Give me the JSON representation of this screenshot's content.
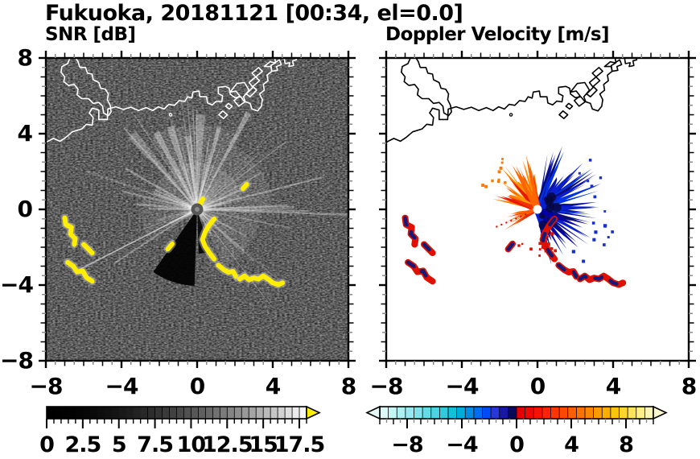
{
  "title": "Fukuoka, 20181121 [00:34, el=0.0]",
  "panels": [
    {
      "key": "snr",
      "subtitle": "SNR [dB]"
    },
    {
      "key": "velocity",
      "subtitle": "Doppler Velocity [m/s]"
    }
  ],
  "axes": {
    "xlim": [
      -8,
      8
    ],
    "ylim": [
      -8,
      8
    ],
    "xtick_values": [
      -8,
      -4,
      0,
      4,
      8
    ],
    "ytick_values": [
      8,
      4,
      0,
      -4,
      -8
    ],
    "xtick_labels": [
      "−8",
      "−4",
      "0",
      "4",
      "8"
    ],
    "ytick_labels": [
      "8",
      "4",
      "0",
      "−4",
      "−8"
    ],
    "minor_tick_step": 0.5,
    "grid": false
  },
  "colors": {
    "snr_background": "#000000",
    "snr_coast": "#ffffff",
    "snr_over_yellow": "#ffee00",
    "snr_halo": "#c8c8c8",
    "vel_background": "#ffffff",
    "vel_coast": "#000000",
    "vel_navy": "#0b12a6",
    "vel_navy_dark": "#07073f",
    "vel_orange": "#ff7d00",
    "vel_red": "#e01000",
    "axis_color": "#000000",
    "minor_tick_gray": "#8a8a8a"
  },
  "chart_data": [
    {
      "type": "heatmap",
      "title": "SNR [dB]",
      "variable": "radar signal-to-noise ratio PPI scan",
      "units": "dB",
      "x_range": [
        -8,
        8
      ],
      "y_range": [
        -8,
        8
      ],
      "radar_center": [
        0,
        0
      ],
      "colorbar": {
        "min": 0,
        "max": 18,
        "segments": 36,
        "gamma": 1.9,
        "colormap": "black-to-white grayscale",
        "tick_values": [
          0,
          2.5,
          5,
          7.5,
          10,
          12.5,
          15,
          17.5
        ],
        "tick_labels": [
          "0",
          "2.5",
          "5",
          "7.5",
          "10",
          "12.5",
          "15",
          "17.5"
        ],
        "over_arrow_color": "#ffee00",
        "minor_tick_step": 0.5
      },
      "description": "Black noise background with bright radial beams fanning from the radar at (0,0), mostly toward N-NE-E; yellow (over-range) clutter arcs SW of center and a yellow arc chain running SE from center."
    },
    {
      "type": "heatmap",
      "title": "Doppler Velocity [m/s]",
      "variable": "radial Doppler velocity PPI scan",
      "units": "m/s",
      "x_range": [
        -8,
        8
      ],
      "y_range": [
        -8,
        8
      ],
      "radar_center": [
        0,
        0
      ],
      "colorbar": {
        "min": -10,
        "max": 10,
        "segments": 32,
        "colormap": "diverging cyan-blue to red-yellow",
        "tick_values": [
          -8,
          -4,
          0,
          4,
          8
        ],
        "tick_labels": [
          "−8",
          "−4",
          "0",
          "4",
          "8"
        ],
        "under_arrow_color": "#e4fbf8",
        "over_arrow_color": "#fff8cf",
        "minor_tick_step": 0.5,
        "segment_colors": [
          "#dcfaf8",
          "#c4f5f5",
          "#adf0f2",
          "#95eaef",
          "#7de4ec",
          "#64dce8",
          "#4ad3e4",
          "#2fc9e0",
          "#14bedd",
          "#00abdd",
          "#008ce4",
          "#006cee",
          "#004cf2",
          "#2836e0",
          "#1818a8",
          "#0a0a58",
          "#e60000",
          "#ee0800",
          "#f61400",
          "#fc2400",
          "#ff3600",
          "#ff4a00",
          "#ff5e00",
          "#ff7200",
          "#ff8600",
          "#ff9a00",
          "#ffae00",
          "#ffc30e",
          "#ffd42e",
          "#ffe356",
          "#ffef86",
          "#fff7b4"
        ]
      },
      "lobes": {
        "positive_orange_red_sector_deg": [
          92,
          172
        ],
        "secondary_orange_sector_deg": [
          186,
          218
        ],
        "negative_blue_sector_deg": [
          -84,
          80
        ],
        "note": "orange/red fan points N-NW of radar, navy-blue fan points E-SE; white gap at radar center"
      },
      "description": "Same clutter arcs as SNR panel rendered as red/navy fragments on white background."
    }
  ],
  "map": {
    "coast_main": [
      [
        -8,
        3.55
      ],
      [
        -7.6,
        3.75
      ],
      [
        -7.25,
        3.6
      ],
      [
        -6.95,
        3.8
      ],
      [
        -6.6,
        4.1
      ],
      [
        -6.1,
        4.25
      ],
      [
        -5.85,
        4.5
      ],
      [
        -5.55,
        4.45
      ],
      [
        -5.5,
        4.85
      ],
      [
        -5.7,
        5.1
      ],
      [
        -5.55,
        5.35
      ],
      [
        -5.2,
        5.25
      ],
      [
        -5.2,
        4.75
      ],
      [
        -4.75,
        4.75
      ],
      [
        -4.72,
        5.3
      ],
      [
        -4.3,
        5.42
      ],
      [
        -3.9,
        5.28
      ],
      [
        -3.5,
        5.4
      ],
      [
        -3.1,
        5.22
      ],
      [
        -2.7,
        5.38
      ],
      [
        -2.35,
        5.22
      ],
      [
        -2.05,
        5.42
      ],
      [
        -1.75,
        5.3
      ],
      [
        -1.5,
        5.55
      ],
      [
        -1.2,
        5.5
      ],
      [
        -0.95,
        5.75
      ],
      [
        -0.65,
        5.7
      ],
      [
        -0.5,
        5.95
      ],
      [
        -0.28,
        5.88
      ],
      [
        -0.22,
        6.2
      ],
      [
        0.1,
        6.25
      ],
      [
        0.15,
        5.95
      ],
      [
        0.5,
        5.95
      ],
      [
        0.55,
        5.62
      ],
      [
        0.8,
        5.52
      ],
      [
        1.02,
        5.72
      ],
      [
        1.3,
        5.68
      ],
      [
        1.35,
        6.0
      ],
      [
        1.12,
        6.12
      ],
      [
        1.12,
        6.45
      ],
      [
        1.5,
        6.5
      ],
      [
        1.7,
        6.4
      ],
      [
        1.75,
        6.1
      ],
      [
        2.0,
        5.9
      ],
      [
        2.3,
        5.95
      ],
      [
        2.5,
        5.7
      ],
      [
        2.8,
        5.6
      ],
      [
        2.9,
        5.3
      ],
      [
        3.2,
        5.2
      ],
      [
        3.4,
        5.45
      ],
      [
        3.45,
        5.8
      ],
      [
        3.3,
        6.1
      ],
      [
        3.55,
        6.3
      ],
      [
        3.5,
        6.6
      ],
      [
        3.75,
        6.8
      ],
      [
        3.7,
        7.1
      ],
      [
        3.95,
        7.3
      ],
      [
        3.9,
        7.6
      ],
      [
        4.15,
        7.75
      ],
      [
        4.1,
        8.05
      ]
    ],
    "island_nw": [
      [
        -6.7,
        8.05
      ],
      [
        -6.85,
        7.7
      ],
      [
        -7.15,
        7.55
      ],
      [
        -7.2,
        7.25
      ],
      [
        -7.0,
        7.0
      ],
      [
        -7.05,
        6.75
      ],
      [
        -6.8,
        6.55
      ],
      [
        -6.5,
        6.6
      ],
      [
        -6.3,
        6.35
      ],
      [
        -6.35,
        6.05
      ],
      [
        -6.1,
        5.85
      ],
      [
        -5.75,
        5.85
      ],
      [
        -5.5,
        5.6
      ],
      [
        -5.2,
        5.65
      ],
      [
        -5.0,
        5.45
      ],
      [
        -4.95,
        5.1
      ],
      [
        -4.7,
        4.95
      ],
      [
        -4.55,
        5.15
      ],
      [
        -4.6,
        5.5
      ],
      [
        -4.75,
        5.8
      ],
      [
        -4.7,
        6.1
      ],
      [
        -4.85,
        6.35
      ],
      [
        -5.1,
        6.4
      ],
      [
        -5.2,
        6.7
      ],
      [
        -5.5,
        6.85
      ],
      [
        -5.55,
        7.15
      ],
      [
        -5.8,
        7.2
      ],
      [
        -5.9,
        7.5
      ],
      [
        -6.2,
        7.5
      ],
      [
        -6.3,
        7.8
      ],
      [
        -6.45,
        8.05
      ]
    ],
    "pier_square": [
      [
        1.75,
        6.2
      ],
      [
        2.1,
        6.65
      ],
      [
        2.5,
        6.7
      ],
      [
        2.75,
        6.3
      ],
      [
        2.45,
        5.95
      ],
      [
        2.55,
        5.7
      ],
      [
        2.2,
        5.45
      ],
      [
        1.95,
        5.75
      ],
      [
        2.25,
        6.0
      ],
      [
        2.05,
        6.25
      ],
      [
        1.75,
        6.2
      ]
    ],
    "pier_small_1": [
      [
        1.15,
        5.0
      ],
      [
        1.35,
        5.2
      ],
      [
        1.6,
        5.0
      ],
      [
        1.4,
        4.8
      ],
      [
        1.15,
        5.0
      ]
    ],
    "pier_small_2": [
      [
        1.5,
        5.45
      ],
      [
        1.65,
        5.6
      ],
      [
        1.85,
        5.45
      ],
      [
        1.7,
        5.3
      ],
      [
        1.5,
        5.45
      ]
    ],
    "breakwater_zigzag": [
      [
        2.6,
        6.1
      ],
      [
        2.95,
        6.45
      ],
      [
        2.75,
        6.7
      ],
      [
        3.1,
        7.0
      ],
      [
        2.9,
        7.2
      ],
      [
        3.25,
        7.5
      ],
      [
        3.45,
        7.3
      ],
      [
        3.1,
        7.0
      ],
      [
        3.3,
        6.8
      ],
      [
        2.95,
        6.5
      ],
      [
        3.15,
        6.3
      ],
      [
        2.8,
        5.95
      ],
      [
        2.6,
        6.1
      ]
    ],
    "breakwater_hook": [
      [
        3.55,
        7.55
      ],
      [
        3.85,
        7.8
      ],
      [
        4.1,
        7.75
      ],
      [
        4.35,
        7.9
      ],
      [
        4.45,
        7.65
      ],
      [
        4.2,
        7.55
      ],
      [
        4.25,
        7.35
      ],
      [
        3.95,
        7.3
      ],
      [
        3.9,
        7.55
      ],
      [
        3.55,
        7.55
      ]
    ],
    "corner_hook": [
      [
        4.6,
        8.05
      ],
      [
        4.65,
        7.7
      ],
      [
        4.9,
        7.75
      ],
      [
        4.85,
        7.55
      ],
      [
        5.1,
        7.6
      ],
      [
        5.05,
        7.85
      ],
      [
        5.25,
        7.9
      ],
      [
        5.2,
        8.05
      ]
    ],
    "islet_dot": [
      -1.4,
      5.0
    ]
  },
  "clutter_arcs": {
    "west": [
      [
        [
          -7.0,
          -0.45
        ],
        [
          -6.95,
          -0.8
        ],
        [
          -6.65,
          -0.95
        ],
        [
          -6.7,
          -1.3
        ],
        [
          -6.45,
          -1.55
        ],
        [
          -6.5,
          -1.85
        ]
      ],
      [
        [
          -6.0,
          -1.85
        ],
        [
          -5.8,
          -2.05
        ],
        [
          -5.55,
          -2.3
        ]
      ],
      [
        [
          -6.85,
          -2.8
        ],
        [
          -6.55,
          -3.0
        ],
        [
          -6.35,
          -3.3
        ],
        [
          -6.05,
          -3.25
        ],
        [
          -5.85,
          -3.6
        ],
        [
          -5.55,
          -3.8
        ]
      ]
    ],
    "southeast_chain": [
      [
        [
          0.9,
          -0.5
        ],
        [
          0.62,
          -0.85
        ],
        [
          0.42,
          -1.2
        ],
        [
          0.28,
          -1.6
        ],
        [
          0.42,
          -1.95
        ],
        [
          0.65,
          -2.3
        ],
        [
          0.9,
          -2.62
        ]
      ],
      [
        [
          1.12,
          -2.95
        ],
        [
          1.4,
          -3.18
        ],
        [
          1.65,
          -3.32
        ],
        [
          1.9,
          -3.28
        ],
        [
          2.05,
          -3.55
        ]
      ],
      [
        [
          2.25,
          -3.68
        ],
        [
          2.5,
          -3.52
        ],
        [
          2.75,
          -3.72
        ],
        [
          3.0,
          -3.62
        ],
        [
          3.25,
          -3.68
        ],
        [
          3.5,
          -3.52
        ],
        [
          3.75,
          -3.68
        ],
        [
          4.0,
          -3.88
        ],
        [
          4.3,
          -3.98
        ],
        [
          4.52,
          -3.88
        ]
      ]
    ],
    "isolated_both": [
      [
        [
          -1.55,
          -2.1
        ],
        [
          -1.32,
          -1.82
        ]
      ]
    ],
    "isolated_snr_only": [
      [
        [
          2.42,
          1.1
        ],
        [
          2.62,
          1.32
        ]
      ],
      [
        [
          0.15,
          0.3
        ],
        [
          0.3,
          0.55
        ]
      ]
    ]
  }
}
